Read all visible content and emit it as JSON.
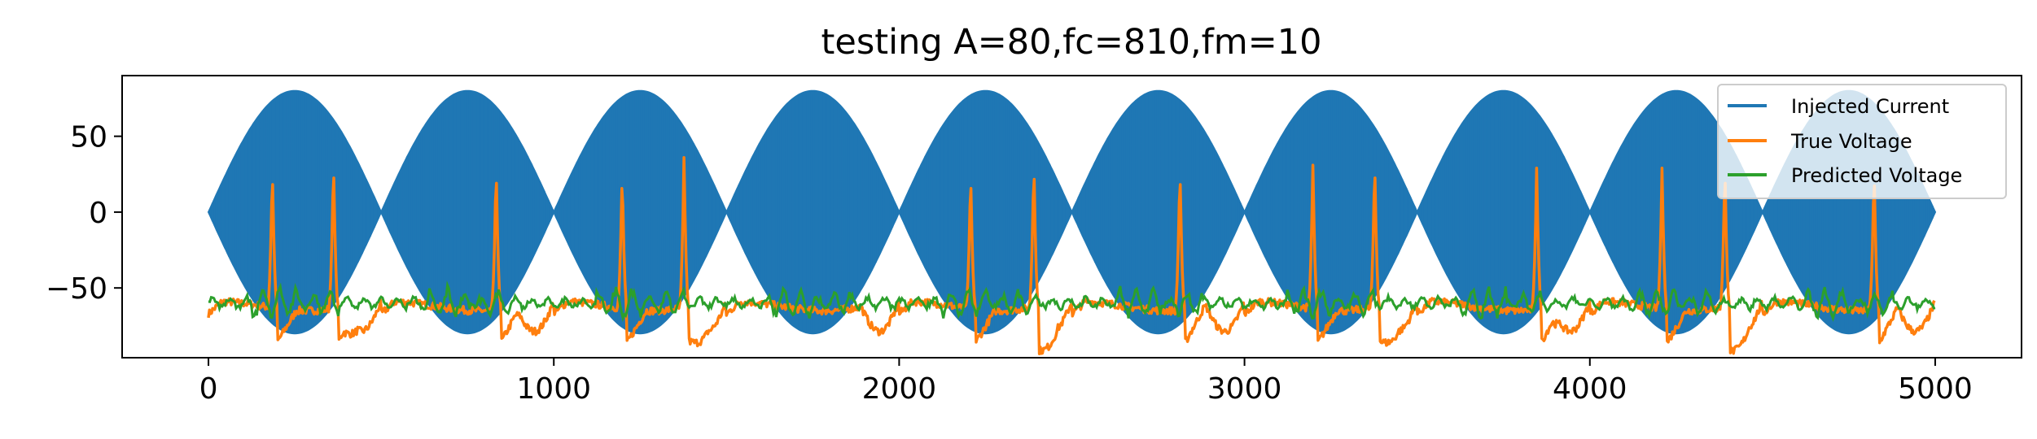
{
  "chart_data": {
    "type": "line",
    "title": "testing A=80,fc=810,fm=10",
    "xlabel": "",
    "ylabel": "",
    "xlim": [
      -250,
      5250
    ],
    "ylim": [
      -96,
      90
    ],
    "x_ticks": [
      0,
      1000,
      2000,
      3000,
      4000,
      5000
    ],
    "x_tick_labels": [
      "0",
      "1000",
      "2000",
      "3000",
      "4000",
      "5000"
    ],
    "y_ticks": [
      -50,
      0,
      50
    ],
    "y_tick_labels": [
      "−50",
      "0",
      "50"
    ],
    "grid": false,
    "legend_position": "top-right",
    "series": [
      {
        "name": "Injected Current",
        "color": "#1f77b4",
        "description_type": "AM carrier",
        "amplitude": 80,
        "carrier_freq_hz": 810,
        "modulation_freq_hz": 10,
        "x_range": [
          0,
          5000
        ],
        "envelope_period": 500,
        "envelope_peak": 80
      },
      {
        "name": "True Voltage",
        "color": "#ff7f0e",
        "baseline": -62,
        "trough": -87,
        "spike_peaks": [
          {
            "x": 185,
            "y": 31
          },
          {
            "x": 362,
            "y": 36
          },
          {
            "x": 833,
            "y": 32
          },
          {
            "x": 1198,
            "y": 28
          },
          {
            "x": 1377,
            "y": 36
          },
          {
            "x": 2207,
            "y": 28
          },
          {
            "x": 2390,
            "y": 35
          },
          {
            "x": 2813,
            "y": 31
          },
          {
            "x": 3198,
            "y": 31
          },
          {
            "x": 3377,
            "y": 36
          },
          {
            "x": 3846,
            "y": 29
          },
          {
            "x": 4209,
            "y": 29
          },
          {
            "x": 4391,
            "y": 32
          },
          {
            "x": 4823,
            "y": 30
          }
        ]
      },
      {
        "name": "Predicted Voltage",
        "color": "#2ca02c",
        "baseline": -60,
        "range": [
          -70,
          -45
        ]
      }
    ]
  }
}
